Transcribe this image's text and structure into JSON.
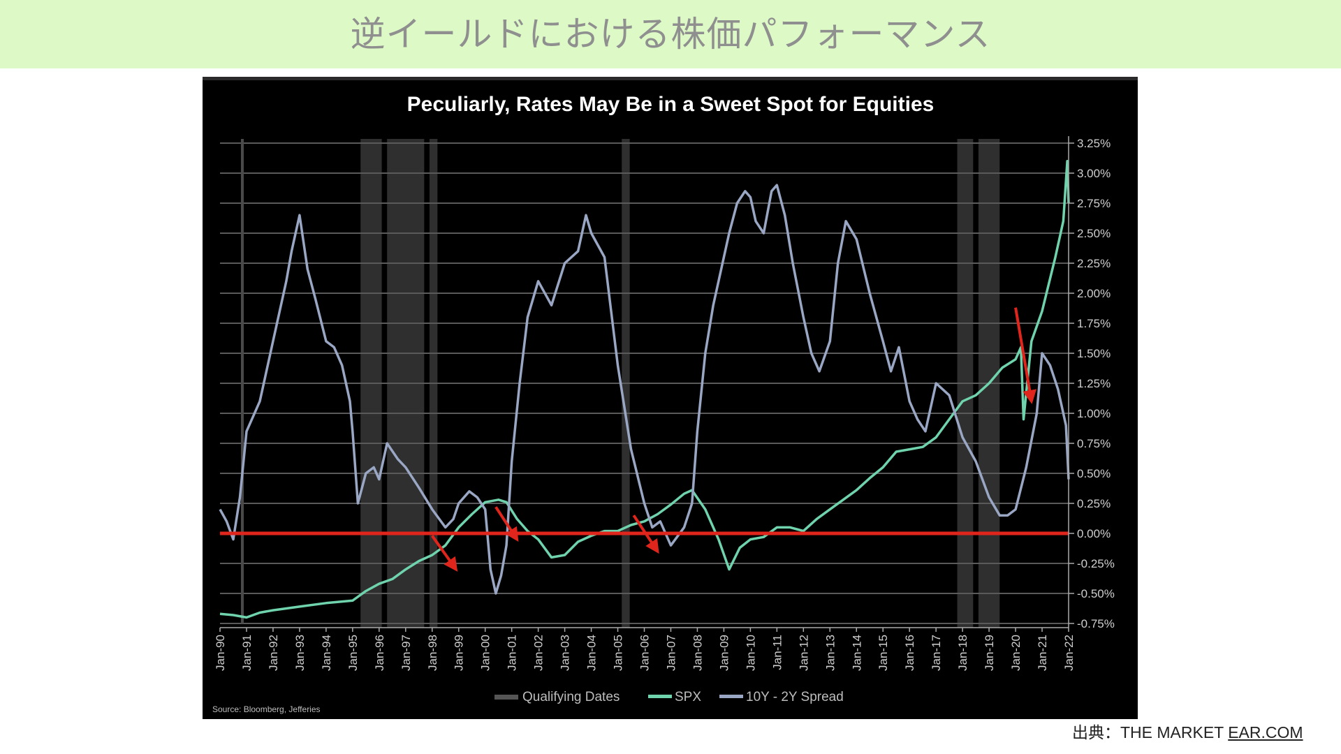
{
  "page": {
    "title": "逆イールドにおける株価パフォーマンス",
    "source_prefix": "出典：THE MARKET ",
    "source_link": "EAR.COM"
  },
  "colors": {
    "banner": "#dcf9c6",
    "chart_bg": "#000000",
    "spx": "#6fd3ad",
    "spread": "#9aa7c4",
    "zero_line": "#e0261c",
    "qualifying": "#555555"
  },
  "chart_data": {
    "type": "line",
    "title": "Peculiarly, Rates May Be in a Sweet Spot for Equities",
    "source_note": "Source: Bloomberg, Jefferies",
    "y_axis": {
      "position": "right",
      "ylim": [
        -0.75,
        3.25
      ],
      "ticks": [
        3.25,
        3.0,
        2.75,
        2.5,
        2.25,
        2.0,
        1.75,
        1.5,
        1.25,
        1.0,
        0.75,
        0.5,
        0.25,
        0.0,
        -0.25,
        -0.5,
        -0.75
      ],
      "tick_labels": [
        "3.25%",
        "3.00%",
        "2.75%",
        "2.50%",
        "2.25%",
        "2.00%",
        "1.75%",
        "1.50%",
        "1.25%",
        "1.00%",
        "0.75%",
        "0.50%",
        "0.25%",
        "0.00%",
        "-0.25%",
        "-0.50%",
        "-0.75%"
      ]
    },
    "x_axis": {
      "xlim": [
        1990.0,
        2022.0
      ],
      "tick_labels": [
        "Jan-90",
        "Jan-91",
        "Jan-92",
        "Jan-93",
        "Jan-94",
        "Jan-95",
        "Jan-96",
        "Jan-97",
        "Jan-98",
        "Jan-99",
        "Jan-00",
        "Jan-01",
        "Jan-02",
        "Jan-03",
        "Jan-04",
        "Jan-05",
        "Jan-06",
        "Jan-07",
        "Jan-08",
        "Jan-09",
        "Jan-10",
        "Jan-11",
        "Jan-12",
        "Jan-13",
        "Jan-14",
        "Jan-15",
        "Jan-16",
        "Jan-17",
        "Jan-18",
        "Jan-19",
        "Jan-20",
        "Jan-21",
        "Jan-22"
      ]
    },
    "grid": true,
    "legend": {
      "placement": "bottom",
      "entries": [
        "Qualifying Dates",
        "SPX",
        "10Y - 2Y Spread"
      ]
    },
    "series": [
      {
        "name": "SPX",
        "x": [
          1990.0,
          1990.5,
          1991.0,
          1991.5,
          1992.0,
          1993.0,
          1994.0,
          1994.5,
          1995.0,
          1995.5,
          1996.0,
          1996.5,
          1997.0,
          1997.5,
          1998.0,
          1998.5,
          1999.0,
          1999.5,
          2000.0,
          2000.5,
          2000.8,
          2001.2,
          2001.6,
          2002.0,
          2002.5,
          2003.0,
          2003.5,
          2004.0,
          2004.5,
          2005.0,
          2005.5,
          2006.0,
          2006.5,
          2007.0,
          2007.5,
          2007.8,
          2008.3,
          2008.8,
          2009.2,
          2009.6,
          2010.0,
          2010.5,
          2011.0,
          2011.5,
          2012.0,
          2012.5,
          2013.0,
          2013.5,
          2014.0,
          2014.5,
          2015.0,
          2015.5,
          2016.0,
          2016.5,
          2017.0,
          2017.5,
          2018.0,
          2018.5,
          2019.0,
          2019.5,
          2020.0,
          2020.2,
          2020.3,
          2020.6,
          2021.0,
          2021.5,
          2021.8,
          2021.95,
          2022.0
        ],
        "values": [
          -0.67,
          -0.68,
          -0.7,
          -0.66,
          -0.64,
          -0.61,
          -0.58,
          -0.57,
          -0.56,
          -0.48,
          -0.42,
          -0.38,
          -0.3,
          -0.23,
          -0.18,
          -0.1,
          0.05,
          0.16,
          0.26,
          0.28,
          0.26,
          0.12,
          0.02,
          -0.05,
          -0.2,
          -0.18,
          -0.07,
          -0.02,
          0.02,
          0.02,
          0.07,
          0.1,
          0.16,
          0.24,
          0.33,
          0.36,
          0.2,
          -0.05,
          -0.3,
          -0.12,
          -0.05,
          -0.03,
          0.05,
          0.05,
          0.02,
          0.12,
          0.2,
          0.28,
          0.36,
          0.46,
          0.55,
          0.68,
          0.7,
          0.72,
          0.8,
          0.95,
          1.1,
          1.15,
          1.25,
          1.38,
          1.45,
          1.55,
          0.95,
          1.6,
          1.85,
          2.3,
          2.6,
          3.1,
          2.75
        ]
      },
      {
        "name": "10Y - 2Y Spread",
        "x": [
          1990.0,
          1990.25,
          1990.5,
          1990.75,
          1991.0,
          1991.5,
          1992.0,
          1992.5,
          1992.7,
          1993.0,
          1993.3,
          1993.6,
          1994.0,
          1994.3,
          1994.6,
          1994.9,
          1995.0,
          1995.2,
          1995.5,
          1995.8,
          1996.0,
          1996.3,
          1996.7,
          1997.0,
          1997.5,
          1998.0,
          1998.5,
          1998.8,
          1999.0,
          1999.4,
          1999.7,
          2000.0,
          2000.2,
          2000.4,
          2000.6,
          2000.8,
          2001.0,
          2001.3,
          2001.6,
          2002.0,
          2002.5,
          2003.0,
          2003.5,
          2003.8,
          2004.0,
          2004.5,
          2005.0,
          2005.5,
          2006.0,
          2006.3,
          2006.6,
          2007.0,
          2007.5,
          2007.8,
          2008.0,
          2008.3,
          2008.6,
          2008.9,
          2009.2,
          2009.5,
          2009.8,
          2010.0,
          2010.2,
          2010.5,
          2010.8,
          2011.0,
          2011.3,
          2011.6,
          2012.0,
          2012.3,
          2012.6,
          2013.0,
          2013.3,
          2013.6,
          2014.0,
          2014.5,
          2015.0,
          2015.3,
          2015.6,
          2016.0,
          2016.3,
          2016.6,
          2017.0,
          2017.5,
          2018.0,
          2018.5,
          2019.0,
          2019.4,
          2019.7,
          2020.0,
          2020.4,
          2020.8,
          2021.0,
          2021.3,
          2021.6,
          2021.9,
          2022.0
        ],
        "values": [
          0.2,
          0.1,
          -0.05,
          0.3,
          0.85,
          1.1,
          1.6,
          2.1,
          2.35,
          2.65,
          2.2,
          1.95,
          1.6,
          1.55,
          1.4,
          1.1,
          0.85,
          0.25,
          0.5,
          0.55,
          0.45,
          0.75,
          0.62,
          0.55,
          0.38,
          0.2,
          0.05,
          0.12,
          0.25,
          0.35,
          0.3,
          0.2,
          -0.3,
          -0.5,
          -0.35,
          -0.1,
          0.6,
          1.25,
          1.8,
          2.1,
          1.9,
          2.25,
          2.35,
          2.65,
          2.5,
          2.3,
          1.4,
          0.7,
          0.25,
          0.05,
          0.1,
          -0.1,
          0.05,
          0.25,
          0.85,
          1.5,
          1.9,
          2.2,
          2.5,
          2.75,
          2.85,
          2.8,
          2.6,
          2.5,
          2.85,
          2.9,
          2.65,
          2.25,
          1.8,
          1.5,
          1.35,
          1.6,
          2.25,
          2.6,
          2.45,
          2.0,
          1.6,
          1.35,
          1.55,
          1.1,
          0.95,
          0.85,
          1.25,
          1.15,
          0.8,
          0.6,
          0.3,
          0.15,
          0.15,
          0.2,
          0.55,
          1.0,
          1.5,
          1.4,
          1.2,
          0.9,
          0.45
        ]
      }
    ],
    "qualifying_periods": [
      [
        1995.3,
        1996.1
      ],
      [
        1996.3,
        1997.7
      ],
      [
        1997.9,
        1998.2
      ],
      [
        2005.15,
        2005.45
      ],
      [
        2017.8,
        2018.4
      ],
      [
        2018.6,
        2019.4
      ]
    ],
    "arrows": [
      {
        "from": [
          1998.0,
          -0.02
        ],
        "to": [
          1998.9,
          -0.3
        ]
      },
      {
        "from": [
          2000.4,
          0.22
        ],
        "to": [
          2001.2,
          -0.05
        ]
      },
      {
        "from": [
          2005.6,
          0.15
        ],
        "to": [
          2006.5,
          -0.15
        ]
      },
      {
        "from": [
          2020.0,
          1.88
        ],
        "to": [
          2020.6,
          1.1
        ]
      }
    ]
  }
}
